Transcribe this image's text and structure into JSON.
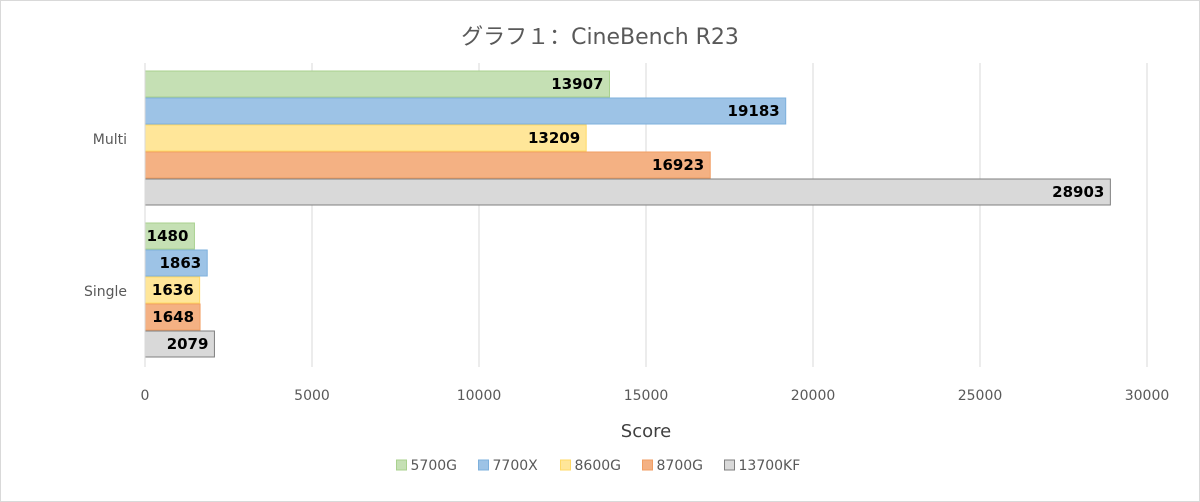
{
  "chart_data": {
    "type": "bar",
    "orientation": "horizontal",
    "title": "グラフ１：CineBench R23",
    "xlabel": "Score",
    "ylabel": "",
    "xlim": [
      0,
      30000
    ],
    "x_ticks": [
      0,
      5000,
      10000,
      15000,
      20000,
      25000,
      30000
    ],
    "grid": true,
    "legend_position": "bottom",
    "categories": [
      "Multi",
      "Single"
    ],
    "series": [
      {
        "name": "5700G",
        "color": "#c5e0b4",
        "stroke": "#a9d18e",
        "values": [
          13907,
          1480
        ]
      },
      {
        "name": "7700X",
        "color": "#9dc3e6",
        "stroke": "#7eb0dc",
        "values": [
          19183,
          1863
        ]
      },
      {
        "name": "8600G",
        "color": "#ffe699",
        "stroke": "#ffd966",
        "values": [
          13209,
          1636
        ]
      },
      {
        "name": "8700G",
        "color": "#f4b183",
        "stroke": "#f19e63",
        "values": [
          16923,
          1648
        ]
      },
      {
        "name": "13700KF",
        "color": "#d9d9d9",
        "stroke": "#7f7f7f",
        "values": [
          28903,
          2079
        ]
      }
    ]
  }
}
